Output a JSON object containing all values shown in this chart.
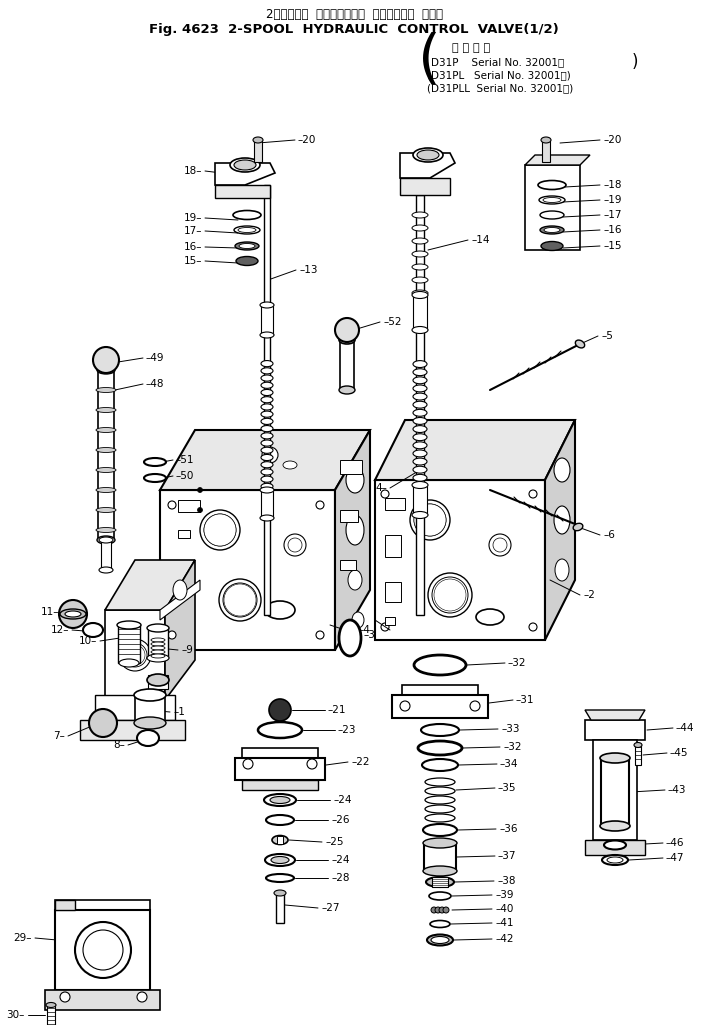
{
  "bg_color": "#ffffff",
  "title_jp": "2スプール ハイドロリック コントロール バルブ",
  "title_en": "Fig. 4623  2-SPOOL  HYDRAULIC  CONTROL  VALVE(1/2)",
  "applicable_header": "適用号機",
  "model1": "D31P    Serial No. 32001～",
  "model2": "D31PL   Serial No. 32001～",
  "model3": "D31PLL  Serial No. 32001～",
  "lc": "#000000",
  "gc": "#888888",
  "hatch_color": "#444444"
}
